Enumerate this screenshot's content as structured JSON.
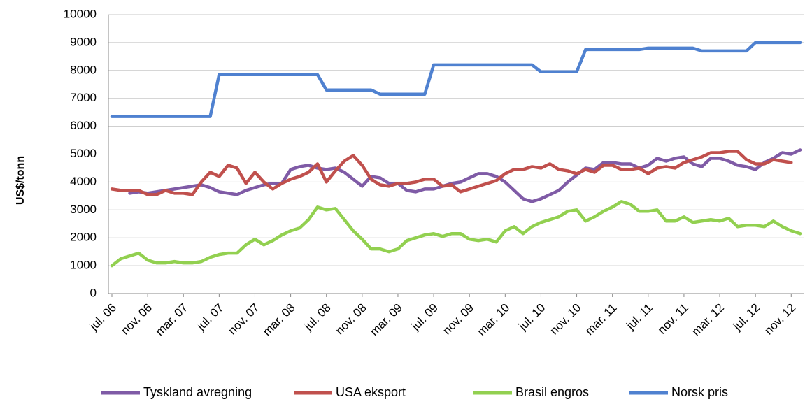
{
  "chart_data": {
    "type": "line",
    "y_label": "US$/tonn",
    "ylim": [
      0,
      10000
    ],
    "yticks": [
      0,
      1000,
      2000,
      3000,
      4000,
      5000,
      6000,
      7000,
      8000,
      9000,
      10000
    ],
    "grid": true,
    "legend": "bottom",
    "categories": [
      "jul. 06",
      null,
      null,
      null,
      "nov. 06",
      null,
      null,
      null,
      "mar. 07",
      null,
      null,
      null,
      "jul. 07",
      null,
      null,
      null,
      "nov. 07",
      null,
      null,
      null,
      "mar. 08",
      null,
      null,
      null,
      "jul. 08",
      null,
      null,
      null,
      "nov. 08",
      null,
      null,
      null,
      "mar. 09",
      null,
      null,
      null,
      "jul. 09",
      null,
      null,
      null,
      "nov. 09",
      null,
      null,
      null,
      "mar. 10",
      null,
      null,
      null,
      "jul. 10",
      null,
      null,
      null,
      "nov. 10",
      null,
      null,
      null,
      "mar. 11",
      null,
      null,
      null,
      "jul. 11",
      null,
      null,
      null,
      "nov. 11",
      null,
      null,
      null,
      "mar. 12",
      null,
      null,
      null,
      "jul. 12",
      null,
      null,
      null,
      "nov. 12",
      null
    ],
    "series": [
      {
        "name": "Tyskland avregning",
        "color": "#7f5ba6",
        "values": [
          null,
          null,
          3600,
          3650,
          3600,
          3650,
          3700,
          3750,
          3800,
          3850,
          3900,
          3800,
          3650,
          3600,
          3550,
          3700,
          3800,
          3900,
          3950,
          3950,
          4450,
          4550,
          4600,
          4500,
          4450,
          4500,
          4350,
          4100,
          3850,
          4200,
          4150,
          3950,
          3950,
          3700,
          3650,
          3750,
          3750,
          3850,
          3950,
          4000,
          4150,
          4300,
          4300,
          4200,
          4000,
          3700,
          3400,
          3300,
          3400,
          3550,
          3700,
          4000,
          4250,
          4500,
          4450,
          4700,
          4700,
          4650,
          4650,
          4500,
          4600,
          4850,
          4750,
          4850,
          4900,
          4650,
          4550,
          4850,
          4850,
          4750,
          4600,
          4550,
          4450,
          4700,
          4850,
          5050,
          5000,
          5150
        ]
      },
      {
        "name": "USA eksport",
        "color": "#c0504d",
        "values": [
          3750,
          3700,
          3700,
          3700,
          3550,
          3550,
          3700,
          3600,
          3600,
          3550,
          4000,
          4350,
          4200,
          4600,
          4500,
          3950,
          4350,
          4000,
          3750,
          3950,
          4100,
          4200,
          4350,
          4650,
          4000,
          4400,
          4750,
          4950,
          4600,
          4100,
          3900,
          3850,
          3950,
          3950,
          4000,
          4100,
          4100,
          3850,
          3900,
          3650,
          3750,
          3850,
          3950,
          4050,
          4300,
          4450,
          4450,
          4550,
          4500,
          4650,
          4450,
          4400,
          4300,
          4450,
          4350,
          4600,
          4600,
          4450,
          4450,
          4500,
          4300,
          4500,
          4550,
          4500,
          4700,
          4800,
          4900,
          5050,
          5050,
          5100,
          5100,
          4800,
          4650,
          4650,
          4800,
          4750,
          4700,
          null
        ]
      },
      {
        "name": "Brasil engros",
        "color": "#92d050",
        "values": [
          1000,
          1250,
          1350,
          1450,
          1200,
          1100,
          1100,
          1150,
          1100,
          1100,
          1150,
          1300,
          1400,
          1450,
          1450,
          1750,
          1950,
          1750,
          1900,
          2100,
          2250,
          2350,
          2650,
          3100,
          3000,
          3050,
          2650,
          2250,
          1950,
          1600,
          1600,
          1500,
          1600,
          1900,
          2000,
          2100,
          2150,
          2050,
          2150,
          2150,
          1950,
          1900,
          1950,
          1850,
          2250,
          2400,
          2150,
          2400,
          2550,
          2650,
          2750,
          2950,
          3000,
          2600,
          2750,
          2950,
          3100,
          3300,
          3200,
          2950,
          2950,
          3000,
          2600,
          2600,
          2750,
          2550,
          2600,
          2650,
          2600,
          2700,
          2400,
          2450,
          2450,
          2400,
          2600,
          2400,
          2250,
          2150
        ]
      },
      {
        "name": "Norsk pris",
        "color": "#4f81d0",
        "values": [
          6350,
          6350,
          6350,
          6350,
          6350,
          6350,
          6350,
          6350,
          6350,
          6350,
          6350,
          6350,
          7850,
          7850,
          7850,
          7850,
          7850,
          7850,
          7850,
          7850,
          7850,
          7850,
          7850,
          7850,
          7300,
          7300,
          7300,
          7300,
          7300,
          7300,
          7150,
          7150,
          7150,
          7150,
          7150,
          7150,
          8200,
          8200,
          8200,
          8200,
          8200,
          8200,
          8200,
          8200,
          8200,
          8200,
          8200,
          8200,
          7950,
          7950,
          7950,
          7950,
          7950,
          8750,
          8750,
          8750,
          8750,
          8750,
          8750,
          8750,
          8800,
          8800,
          8800,
          8800,
          8800,
          8800,
          8700,
          8700,
          8700,
          8700,
          8700,
          8700,
          9000,
          9000,
          9000,
          9000,
          9000,
          9000
        ]
      }
    ]
  }
}
